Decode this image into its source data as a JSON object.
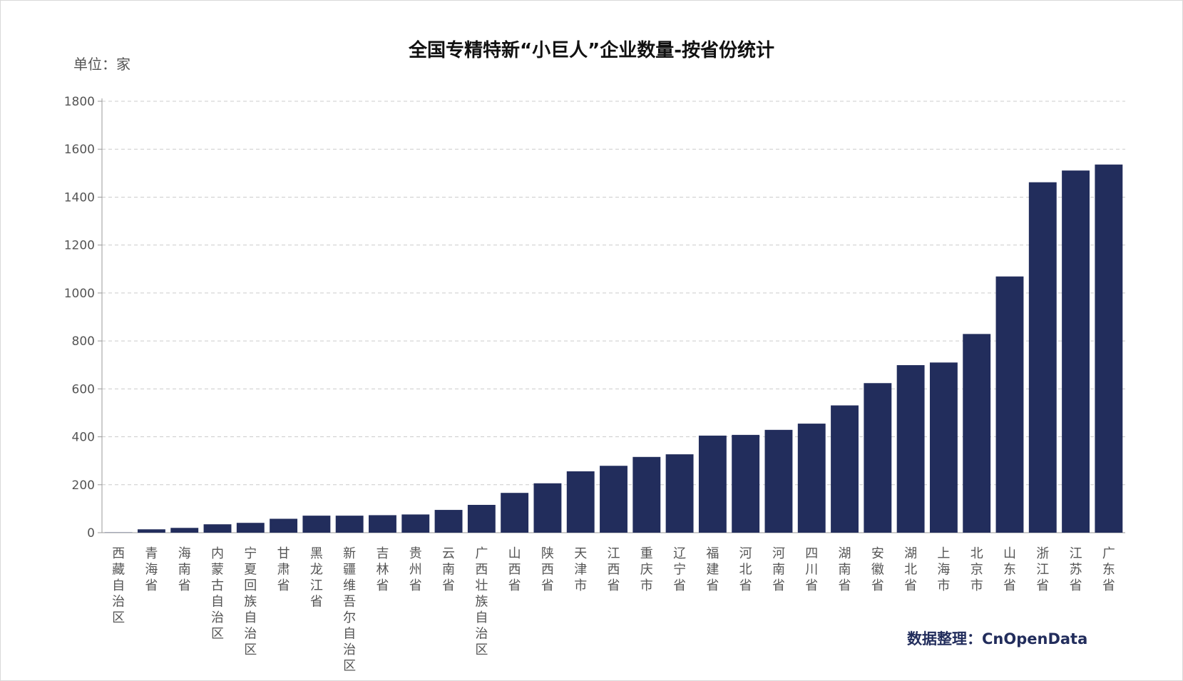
{
  "chart_data": {
    "type": "bar",
    "title": "全国专精特新“小巨人”企业数量-按省份统计",
    "unit_label": "单位：家",
    "source": "数据整理：CnOpenData",
    "xlabel": "",
    "ylabel": "",
    "ylim": [
      0,
      1800
    ],
    "yticks": [
      0,
      200,
      400,
      600,
      800,
      1000,
      1200,
      1400,
      1600,
      1800
    ],
    "grid": true,
    "categories": [
      "西藏自治区",
      "青海省",
      "海南省",
      "内蒙古自治区",
      "宁夏回族自治区",
      "甘肃省",
      "黑龙江省",
      "新疆维吾尔自治区",
      "吉林省",
      "贵州省",
      "云南省",
      "广西壮族自治区",
      "山西省",
      "陕西省",
      "天津市",
      "江西省",
      "重庆市",
      "辽宁省",
      "福建省",
      "河北省",
      "河南省",
      "四川省",
      "湖南省",
      "安徽省",
      "湖北省",
      "上海市",
      "北京市",
      "山东省",
      "浙江省",
      "江苏省",
      "广东省"
    ],
    "values": [
      1,
      14,
      20,
      35,
      41,
      58,
      71,
      71,
      73,
      76,
      95,
      116,
      166,
      206,
      256,
      279,
      316,
      327,
      405,
      408,
      429,
      455,
      531,
      624,
      699,
      710,
      829,
      1069,
      1462,
      1511,
      1536
    ]
  },
  "colors": {
    "bar": "#222d5c",
    "grid": "#cccccc",
    "source": "#222d5c"
  }
}
